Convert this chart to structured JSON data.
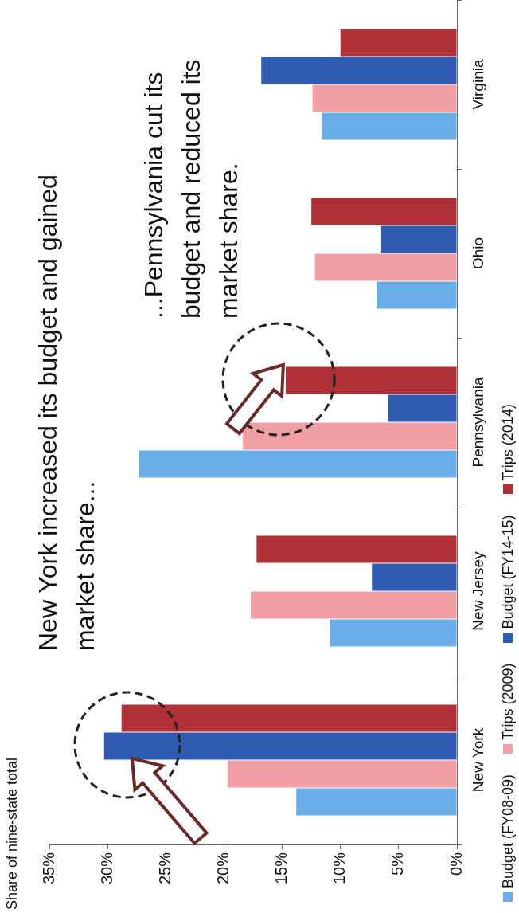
{
  "chart_data": {
    "type": "bar",
    "orientation": "horizontal",
    "categories": [
      "Virginia",
      "Ohio",
      "Pennsylvania",
      "New Jersey",
      "New York"
    ],
    "series": [
      {
        "name": "Budget (FY08-09)",
        "color": "#6aaee8",
        "values": [
          11.6,
          6.9,
          27.3,
          10.9,
          13.8
        ]
      },
      {
        "name": "Trips (2009)",
        "color": "#f0a0a5",
        "values": [
          12.4,
          12.2,
          18.4,
          17.7,
          19.7
        ]
      },
      {
        "name": "Budget (FY14-15)",
        "color": "#2f5bb0",
        "values": [
          16.8,
          6.5,
          5.9,
          7.3,
          30.3
        ]
      },
      {
        "name": "Trips (2014)",
        "color": "#b03038",
        "values": [
          10.0,
          12.5,
          14.7,
          17.2,
          28.8
        ]
      }
    ],
    "xlim": [
      35,
      0
    ],
    "xticks": [
      {
        "value": 0,
        "label": "0%"
      },
      {
        "value": 5,
        "label": "5%"
      },
      {
        "value": 10,
        "label": "10%"
      },
      {
        "value": 15,
        "label": "15%"
      },
      {
        "value": 20,
        "label": "20%"
      },
      {
        "value": 25,
        "label": "25%"
      },
      {
        "value": 30,
        "label": "30%"
      },
      {
        "value": 35,
        "label": "35%"
      }
    ],
    "grid": false,
    "legend": "right",
    "annotations": [
      "New York increased its budget and gained market share...",
      "...Pennsylvania cut its budget and reduced its market share.",
      "Share of nine-state total"
    ]
  }
}
